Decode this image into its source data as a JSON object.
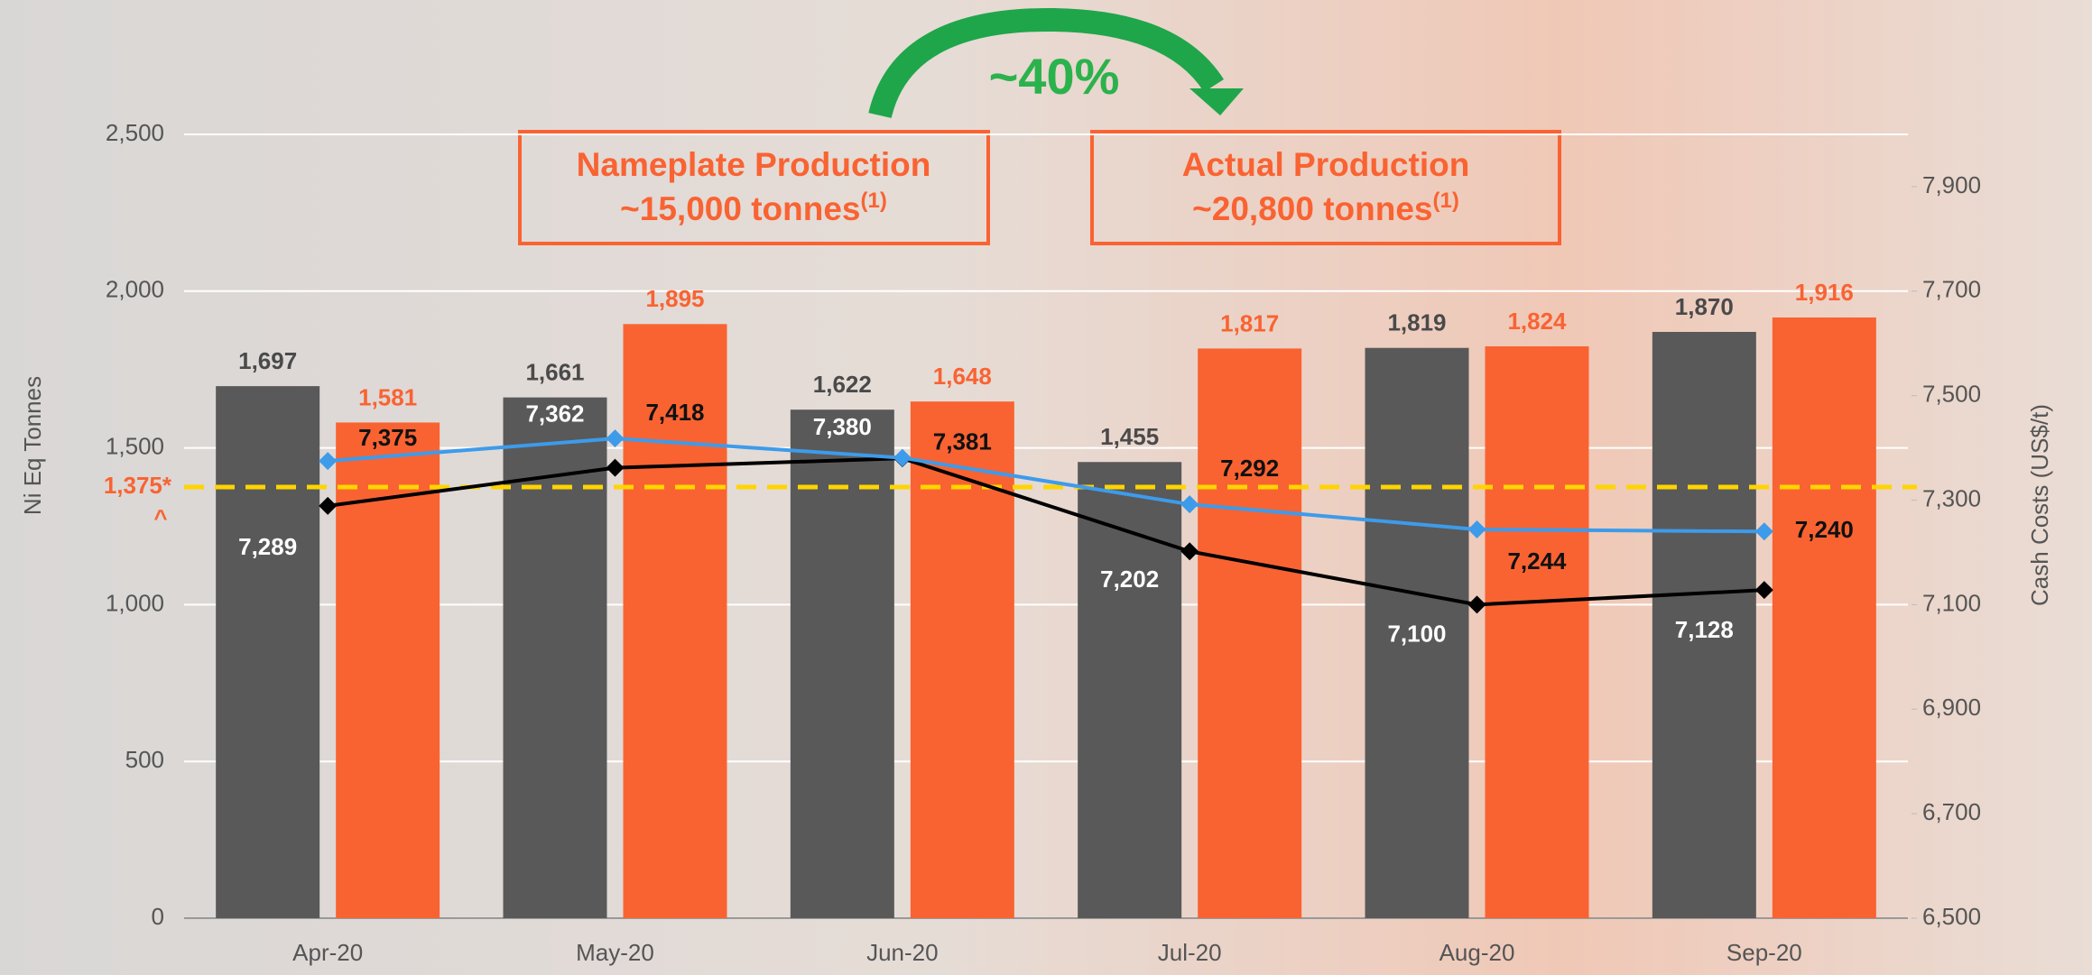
{
  "chart_data": {
    "type": "bar",
    "categories": [
      "Apr-20",
      "May-20",
      "Jun-20",
      "Jul-20",
      "Aug-20",
      "Sep-20"
    ],
    "series": [
      {
        "type": "bar",
        "color": "#595959",
        "label_color": "#4a4a4a",
        "values": [
          1697,
          1661,
          1622,
          1455,
          1819,
          1870
        ],
        "value_labels": [
          "1,697",
          "1,661",
          "1,622",
          "1,455",
          "1,819",
          "1,870"
        ]
      },
      {
        "type": "bar",
        "color": "#f96332",
        "label_color": "#f96332",
        "values": [
          1581,
          1895,
          1648,
          1817,
          1824,
          1916
        ],
        "value_labels": [
          "1,581",
          "1,895",
          "1,648",
          "1,817",
          "1,824",
          "1,916"
        ]
      },
      {
        "type": "line",
        "axis": "y2",
        "color": "#000000",
        "label_color": "#ffffff",
        "values": [
          7289,
          7362,
          7380,
          7202,
          7100,
          7128
        ],
        "value_labels": [
          "7,289",
          "7,362",
          "7,380",
          "7,202",
          "7,100",
          "7,128"
        ]
      },
      {
        "type": "line",
        "axis": "y2",
        "color": "#3d9bea",
        "label_color": "#111111",
        "values": [
          7375,
          7418,
          7381,
          7292,
          7244,
          7240
        ],
        "value_labels": [
          "7,375",
          "7,418",
          "7,381",
          "7,292",
          "7,244",
          "7,240"
        ]
      }
    ],
    "ylim": [
      0,
      2500
    ],
    "yticks": [
      0,
      500,
      {
        "value": 1000,
        "label": "1,000"
      },
      {
        "value": 1500,
        "label": "1,500"
      },
      {
        "value": 2000,
        "label": "2,000"
      },
      {
        "value": 2500,
        "label": "2,500"
      }
    ],
    "y2lim": [
      6500,
      8000
    ],
    "y2ticks": [
      {
        "value": 6500,
        "label": "6,500"
      },
      {
        "value": 6700,
        "label": "6,700"
      },
      {
        "value": 6900,
        "label": "6,900"
      },
      {
        "value": 7100,
        "label": "7,100"
      },
      {
        "value": 7300,
        "label": "7,300"
      },
      {
        "value": 7500,
        "label": "7,500"
      },
      {
        "value": 7700,
        "label": "7,700"
      },
      {
        "value": 7900,
        "label": "7,900"
      }
    ],
    "ylabel": "Ni Eq Tonnes",
    "y2label": "Cash Costs (US$/t)",
    "grid": true,
    "reference_line": {
      "value": 1375,
      "label": "1,375*",
      "note": "^",
      "color": "#ffd400"
    },
    "annotations": [
      {
        "title": "Nameplate Production",
        "text": "~15,000 tonnes",
        "note": "(1)"
      },
      {
        "title": "Actual Production",
        "text": "~20,800 tonnes",
        "note": "(1)"
      },
      {
        "text": "~40%"
      }
    ]
  }
}
